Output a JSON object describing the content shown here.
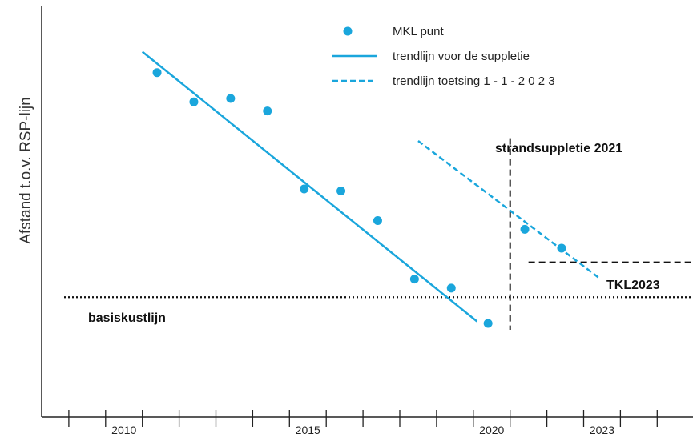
{
  "chart_data": {
    "type": "scatter",
    "ylabel": "Afstand t.o.v. RSP-lijn",
    "xlabel": "",
    "xlim": [
      2009.0,
      2026.0
    ],
    "ylim": [
      0,
      100
    ],
    "x_ticks": [
      2009,
      2010,
      2011,
      2012,
      2013,
      2014,
      2015,
      2016,
      2017,
      2018,
      2019,
      2020,
      2021,
      2022,
      2023,
      2024,
      2025
    ],
    "x_tick_labels": [
      {
        "x": 2010,
        "label": "2010"
      },
      {
        "x": 2015,
        "label": "2015"
      },
      {
        "x": 2020,
        "label": "2020"
      },
      {
        "x": 2023,
        "label": "2023"
      }
    ],
    "colors": {
      "series": "#1aa6dc",
      "reference": "#111111",
      "axis": "#222222"
    },
    "series": [
      {
        "name": "MKL punt",
        "kind": "points",
        "x": [
          2011.4,
          2012.4,
          2013.4,
          2014.4,
          2015.4,
          2016.4,
          2017.4,
          2018.4,
          2019.4,
          2020.4,
          2021.4,
          2022.4
        ],
        "y": [
          81.5,
          72.8,
          73.8,
          70.1,
          46.9,
          46.3,
          37.5,
          20.1,
          17.4,
          6.9,
          34.9,
          29.3
        ]
      },
      {
        "name": "trendlijn voor de suppletie",
        "kind": "line",
        "x": [
          2011.0,
          2020.1
        ],
        "y": [
          87.7,
          7.5
        ]
      },
      {
        "name": "trendlijn toetsing 1 - 1 - 2 0 2 3",
        "kind": "dashed-line",
        "x": [
          2018.5,
          2023.4
        ],
        "y": [
          61.2,
          20.6
        ]
      }
    ],
    "reference_lines": [
      {
        "label": "basiskustlijn",
        "orientation": "horizontal",
        "y": 14.7,
        "x_from": 2008.5,
        "x_to": 2026.0,
        "style": "dotted"
      },
      {
        "label": "TKL2023",
        "orientation": "horizontal",
        "y": 25.1,
        "x_from": 2021.5,
        "x_to": 2026.0,
        "style": "dashed"
      },
      {
        "label": "strandsuppletie 2021",
        "orientation": "vertical",
        "x": 2021.0,
        "y_from": 5.0,
        "y_to": 62.0,
        "style": "dashed"
      }
    ],
    "legend": {
      "position": "top-center",
      "entries": [
        {
          "label": "MKL punt",
          "symbol": "dot"
        },
        {
          "label": "trendlijn voor de suppletie",
          "symbol": "line"
        },
        {
          "label": "trendlijn toetsing 1 - 1 - 2 0 2 3",
          "symbol": "dashed"
        }
      ]
    },
    "grid": false
  }
}
